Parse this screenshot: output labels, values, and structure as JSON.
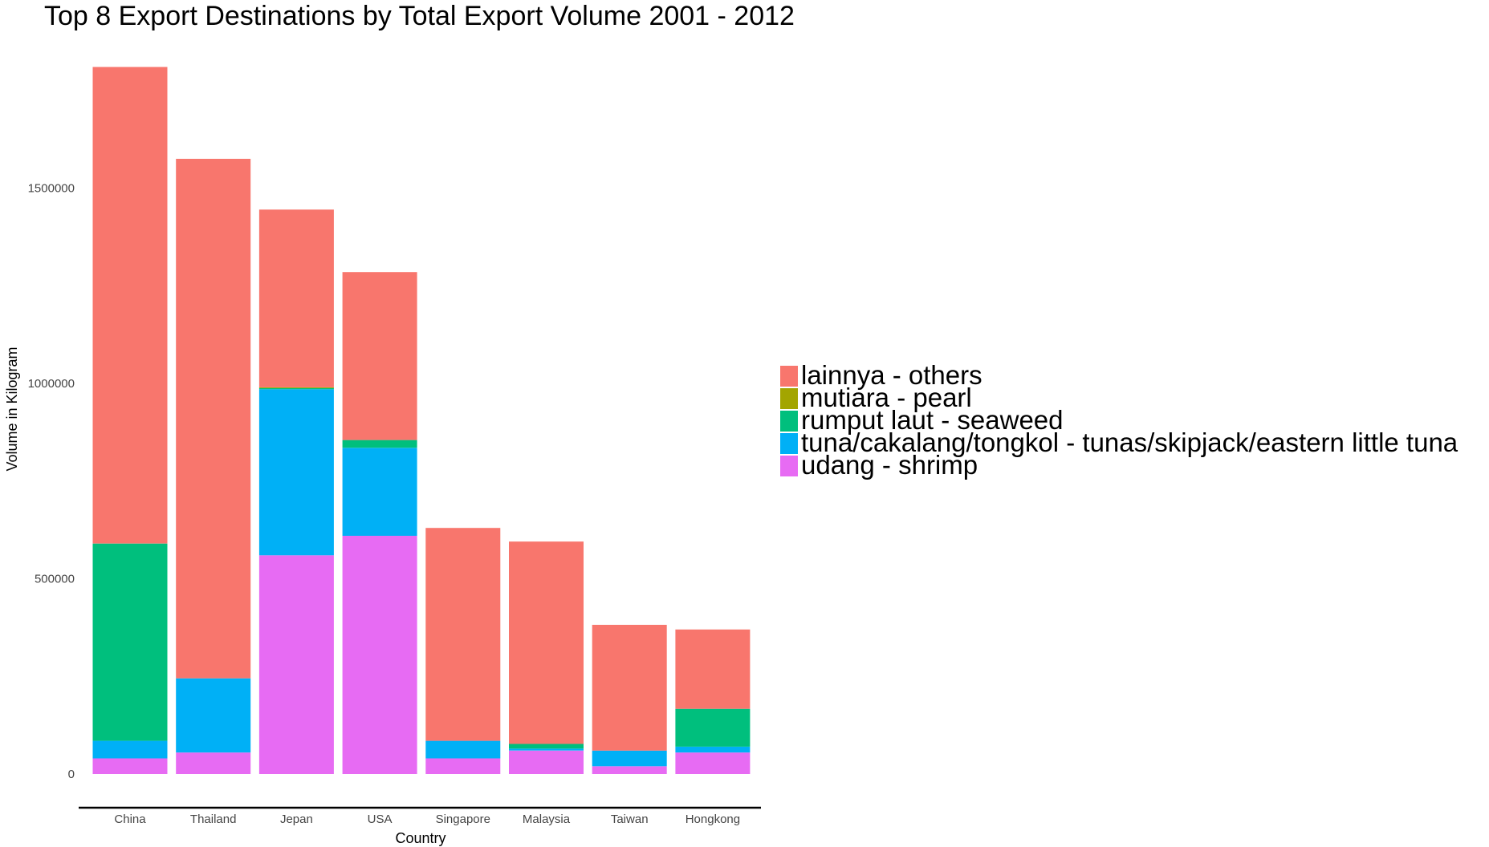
{
  "chart_data": {
    "type": "bar",
    "stacked": true,
    "title": "Top 8 Export Destinations by Total Export Volume 2001 - 2012",
    "xlabel": "Country",
    "ylabel": "Volume in Kilogram",
    "categories": [
      "China",
      "Thailand",
      "Jepan",
      "USA",
      "Singapore",
      "Malaysia",
      "Taiwan",
      "Hongkong"
    ],
    "ylim": [
      0,
      1800000
    ],
    "yticks": [
      0,
      500000,
      1000000,
      1500000
    ],
    "ytick_labels": [
      "0",
      "500000",
      "1000000",
      "1500000"
    ],
    "grid": false,
    "legend_position": "right",
    "series": [
      {
        "name": "udang - shrimp",
        "color": "#E76BF3",
        "values": [
          40000,
          55000,
          560000,
          610000,
          40000,
          60000,
          20000,
          55000
        ]
      },
      {
        "name": "tuna/cakalang/tongkol - tunas/skipjack/eastern little tuna",
        "color": "#00B0F6",
        "values": [
          45000,
          190000,
          425000,
          225000,
          45000,
          5000,
          40000,
          15000
        ]
      },
      {
        "name": "rumput laut - seaweed",
        "color": "#00BF7D",
        "values": [
          505000,
          0,
          3000,
          20000,
          0,
          12000,
          0,
          97000
        ]
      },
      {
        "name": "mutiara - pearl",
        "color": "#A3A500",
        "values": [
          0,
          0,
          2000,
          0,
          0,
          0,
          0,
          0
        ]
      },
      {
        "name": "lainnya - others",
        "color": "#F8766D",
        "values": [
          1220000,
          1330000,
          455000,
          430000,
          545000,
          518000,
          322000,
          203000
        ]
      }
    ],
    "legend_order": [
      4,
      3,
      2,
      1,
      0
    ]
  }
}
